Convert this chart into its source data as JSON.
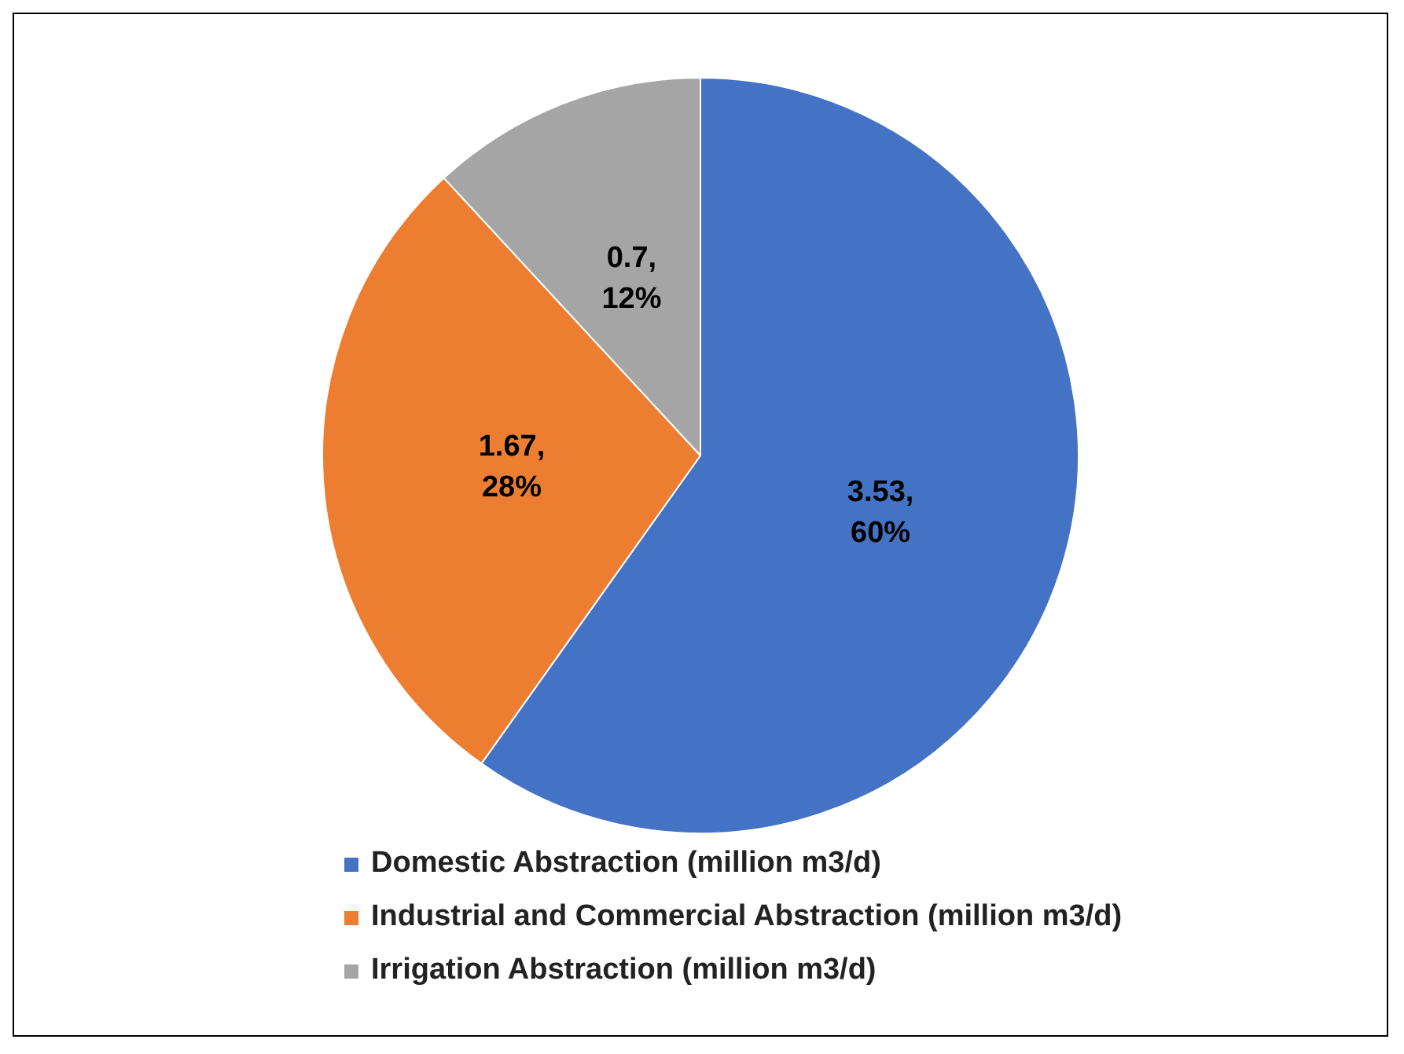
{
  "chart_data": {
    "type": "pie",
    "categories": [
      "Domestic Abstraction (million m3/d)",
      "Industrial and Commercial Abstraction (million m3/d)",
      "Irrigation Abstraction (million m3/d)"
    ],
    "values": [
      3.53,
      1.67,
      0.7
    ],
    "colors": [
      "#4472c4",
      "#ed7d31",
      "#a5a5a5"
    ],
    "value_labels": [
      "3.53, 60%",
      "1.67, 28%",
      "0.7, 12%"
    ],
    "legend": "bottom"
  }
}
